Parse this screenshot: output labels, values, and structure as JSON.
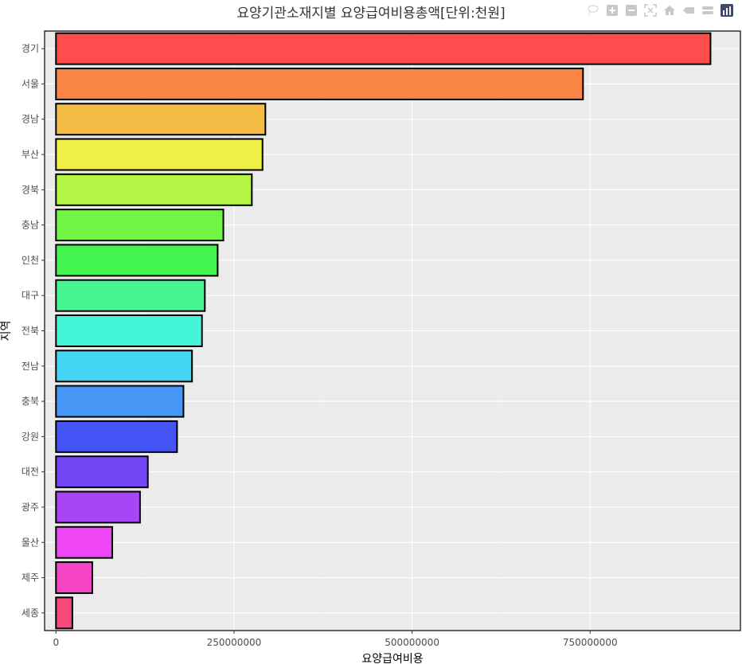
{
  "chart_data": {
    "type": "bar",
    "orientation": "horizontal",
    "title": "요양기관소재지별 요양급여비용총액[단위:천원]",
    "xlabel": "요양급여비용",
    "ylabel": "지역",
    "xlim": [
      -16000000,
      961000000
    ],
    "xticks": [
      0,
      250000000,
      500000000,
      750000000
    ],
    "xtick_labels": [
      "0",
      "250000000",
      "500000000",
      "750000000"
    ],
    "grid": true,
    "legend": false,
    "categories": [
      "경기",
      "서울",
      "경남",
      "부산",
      "경북",
      "충남",
      "인천",
      "대구",
      "전북",
      "전남",
      "충북",
      "강원",
      "대전",
      "광주",
      "울산",
      "제주",
      "세종"
    ],
    "values": [
      919000000,
      740000000,
      294000000,
      290000000,
      275000000,
      235000000,
      227000000,
      209000000,
      205000000,
      191000000,
      179000000,
      170000000,
      129000000,
      118000000,
      79000000,
      51000000,
      23000000
    ],
    "colors": [
      "#ff4d4d",
      "#fa8443",
      "#f5bc45",
      "#efef45",
      "#b2f545",
      "#70f545",
      "#45f550",
      "#45f58f",
      "#45f5d8",
      "#45d5f5",
      "#4596f5",
      "#4555f5",
      "#7345f5",
      "#a845f5",
      "#ee45f5",
      "#f545c4",
      "#f54a7a"
    ]
  },
  "modebar": {
    "icons": [
      "camera-icon",
      "zoom-icon",
      "pan-icon",
      "select-icon",
      "lasso-icon",
      "zoom-in-icon",
      "zoom-out-icon",
      "autoscale-icon",
      "home-icon",
      "spike-icon",
      "compare-icon",
      "plotly-logo-icon"
    ]
  }
}
